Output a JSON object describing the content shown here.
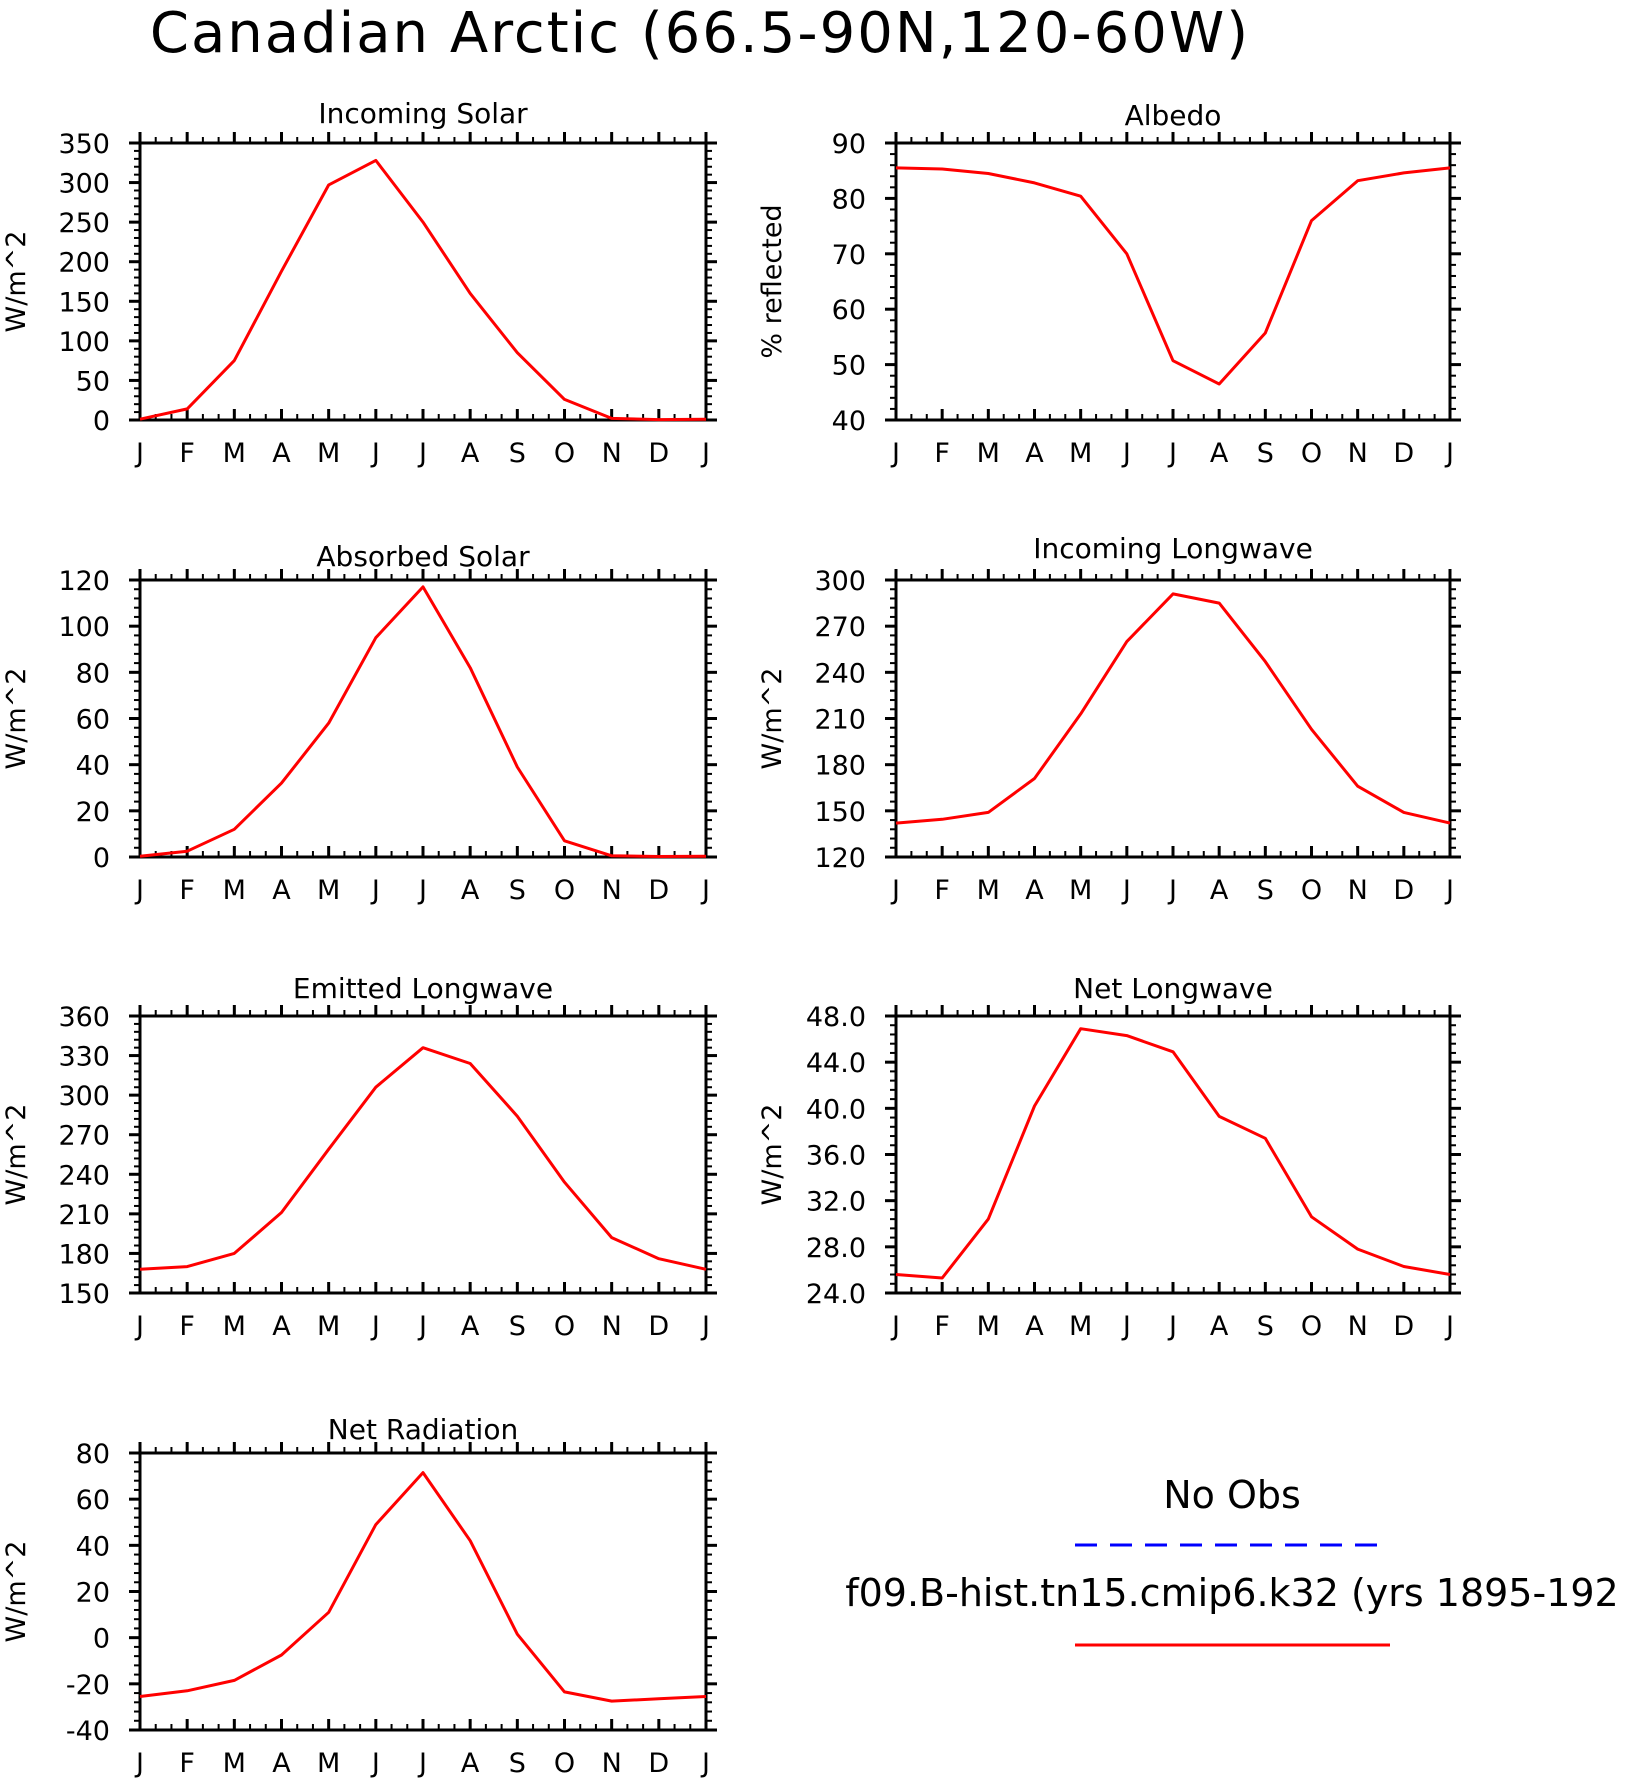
{
  "figure": {
    "title": "Canadian Arctic (66.5-90N,120-60W)"
  },
  "colors": {
    "model": "#ff0000",
    "obs": "#0000ff"
  },
  "legend": {
    "obs_label": "No Obs",
    "model_label": "f09.B-hist.tn15.cmip6.k32 (yrs 1895-192"
  },
  "chart_data": [
    {
      "type": "line",
      "title": "Incoming Solar",
      "ylabel": "W/m^2",
      "x": [
        "J",
        "F",
        "M",
        "A",
        "M",
        "J",
        "J",
        "A",
        "S",
        "O",
        "N",
        "D",
        "J"
      ],
      "ylim": [
        0,
        350
      ],
      "yticks": [
        "0",
        "50",
        "100",
        "150",
        "200",
        "250",
        "300",
        "350"
      ],
      "series": [
        {
          "values": [
            1,
            14,
            75,
            188,
            297,
            328,
            250,
            160,
            85,
            26,
            2,
            0.5,
            1
          ]
        }
      ]
    },
    {
      "type": "line",
      "title": "Albedo",
      "ylabel": "% reflected",
      "x": [
        "J",
        "F",
        "M",
        "A",
        "M",
        "J",
        "J",
        "A",
        "S",
        "O",
        "N",
        "D",
        "J"
      ],
      "ylim": [
        40,
        90
      ],
      "yticks": [
        "40",
        "50",
        "60",
        "70",
        "80",
        "90"
      ],
      "series": [
        {
          "values": [
            85.5,
            85.3,
            84.5,
            82.8,
            80.4,
            70.0,
            50.7,
            46.5,
            55.7,
            76.0,
            83.2,
            84.6,
            85.5
          ]
        }
      ]
    },
    {
      "type": "line",
      "title": "Absorbed Solar",
      "ylabel": "W/m^2",
      "x": [
        "J",
        "F",
        "M",
        "A",
        "M",
        "J",
        "J",
        "A",
        "S",
        "O",
        "N",
        "D",
        "J"
      ],
      "ylim": [
        0,
        120
      ],
      "yticks": [
        "0",
        "20",
        "40",
        "60",
        "80",
        "100",
        "120"
      ],
      "series": [
        {
          "values": [
            0.3,
            2.5,
            12,
            32,
            58,
            95,
            117,
            82,
            39,
            7,
            0.5,
            0.2,
            0.3
          ]
        }
      ]
    },
    {
      "type": "line",
      "title": "Incoming Longwave",
      "ylabel": "W/m^2",
      "x": [
        "J",
        "F",
        "M",
        "A",
        "M",
        "J",
        "J",
        "A",
        "S",
        "O",
        "N",
        "D",
        "J"
      ],
      "ylim": [
        120,
        300
      ],
      "yticks": [
        "120",
        "150",
        "180",
        "210",
        "240",
        "270",
        "300"
      ],
      "series": [
        {
          "values": [
            142,
            144.5,
            149,
            171,
            213,
            260,
            291,
            285,
            247,
            203,
            166,
            149,
            142
          ]
        }
      ]
    },
    {
      "type": "line",
      "title": "Emitted Longwave",
      "ylabel": "W/m^2",
      "x": [
        "J",
        "F",
        "M",
        "A",
        "M",
        "J",
        "J",
        "A",
        "S",
        "O",
        "N",
        "D",
        "J"
      ],
      "ylim": [
        150,
        360
      ],
      "yticks": [
        "150",
        "180",
        "210",
        "240",
        "270",
        "300",
        "330",
        "360"
      ],
      "series": [
        {
          "values": [
            168,
            170,
            180,
            211,
            259,
            306,
            336,
            324,
            284,
            234,
            192,
            176,
            168
          ]
        }
      ]
    },
    {
      "type": "line",
      "title": "Net Longwave",
      "ylabel": "W/m^2",
      "x": [
        "J",
        "F",
        "M",
        "A",
        "M",
        "J",
        "J",
        "A",
        "S",
        "O",
        "N",
        "D",
        "J"
      ],
      "ylim": [
        24,
        48
      ],
      "yticks": [
        "24.0",
        "28.0",
        "32.0",
        "36.0",
        "40.0",
        "44.0",
        "48.0"
      ],
      "series": [
        {
          "values": [
            25.6,
            25.3,
            30.4,
            40.2,
            46.9,
            46.3,
            44.9,
            39.3,
            37.4,
            30.6,
            27.8,
            26.3,
            25.6
          ]
        }
      ]
    },
    {
      "type": "line",
      "title": "Net Radiation",
      "ylabel": "W/m^2",
      "x": [
        "J",
        "F",
        "M",
        "A",
        "M",
        "J",
        "J",
        "A",
        "S",
        "O",
        "N",
        "D",
        "J"
      ],
      "ylim": [
        -40,
        80
      ],
      "yticks": [
        "-40",
        "-20",
        "0",
        "20",
        "40",
        "60",
        "80"
      ],
      "series": [
        {
          "values": [
            -25.5,
            -23,
            -18.5,
            -7.5,
            11,
            49,
            71.5,
            42,
            1.5,
            -23.5,
            -27.5,
            -26.5,
            -25.5
          ]
        }
      ]
    }
  ]
}
